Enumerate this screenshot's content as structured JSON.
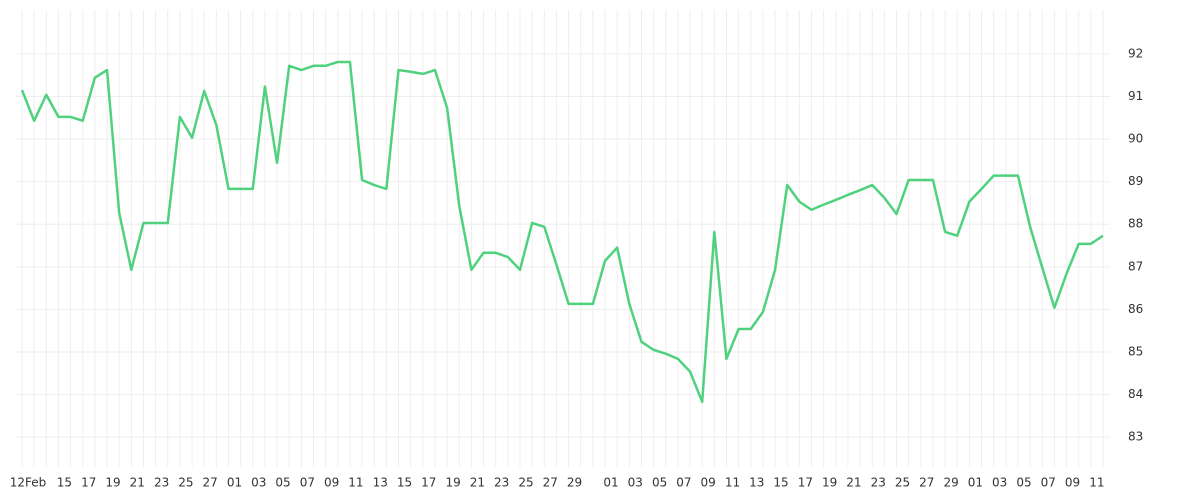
{
  "chart_data": {
    "type": "line",
    "categories": [
      "12Feb",
      null,
      null,
      "15",
      null,
      "17",
      null,
      "19",
      null,
      "21",
      null,
      "23",
      null,
      "25",
      null,
      "27",
      null,
      "01",
      null,
      "03",
      null,
      "05",
      null,
      "07",
      null,
      "09",
      null,
      "11",
      null,
      "13",
      null,
      "15",
      null,
      "17",
      null,
      "19",
      null,
      "21",
      null,
      "23",
      null,
      "25",
      null,
      "27",
      null,
      "29",
      null,
      null,
      "01",
      null,
      "03",
      null,
      "05",
      null,
      "07",
      null,
      "09",
      null,
      "11",
      null,
      "13",
      null,
      "15",
      null,
      "17",
      null,
      "19",
      null,
      "21",
      null,
      "23",
      null,
      "25",
      null,
      "27",
      null,
      "29",
      null,
      "01",
      null,
      "03",
      null,
      "05",
      null,
      "07",
      null,
      "09",
      null,
      "11",
      null
    ],
    "series": [
      {
        "color": "#4fd17d",
        "values": [
          91.15,
          90.43,
          91.04,
          90.52,
          90.52,
          90.43,
          91.44,
          91.62,
          88.27,
          86.93,
          88.03,
          88.03,
          88.03,
          90.52,
          90.03,
          91.13,
          90.33,
          88.83,
          88.83,
          88.83,
          91.23,
          89.44,
          91.72,
          91.62,
          91.72,
          91.72,
          91.81,
          91.81,
          89.04,
          88.92,
          88.83,
          91.62,
          91.58,
          91.53,
          91.62,
          90.73,
          88.43,
          86.93,
          87.33,
          87.33,
          87.23,
          86.93,
          88.03,
          87.94,
          87.05,
          86.13,
          86.13,
          86.13,
          87.14,
          87.45,
          86.13,
          85.24,
          85.05,
          84.96,
          84.84,
          84.54,
          83.83,
          87.82,
          84.84,
          85.54,
          85.54,
          85.94,
          86.93,
          88.92,
          88.53,
          88.34,
          88.46,
          88.57,
          88.69,
          88.8,
          88.92,
          88.62,
          88.24,
          89.04,
          89.04,
          89.04,
          87.82,
          87.73,
          88.53,
          88.83,
          89.14,
          89.14,
          89.14,
          87.94,
          86.98,
          86.04,
          86.84,
          87.54,
          87.54,
          87.73
        ]
      }
    ],
    "ylim": [
      82.3,
      93.03
    ],
    "yticks": [
      83,
      84,
      85,
      86,
      87,
      88,
      89,
      90,
      91,
      92
    ],
    "grid": true
  }
}
